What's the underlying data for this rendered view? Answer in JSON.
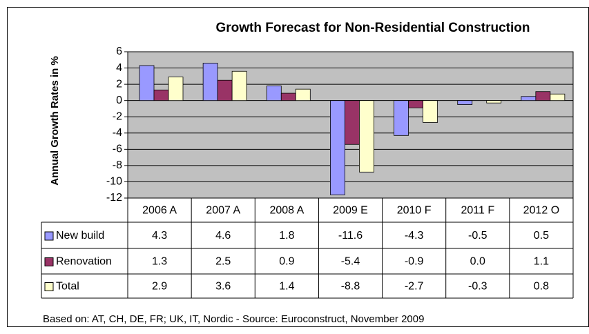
{
  "chart_data": {
    "type": "bar",
    "title": "Growth Forecast for Non-Residential Construction",
    "y_label": "Annual Growth Rates in %",
    "note": "Based on: AT, CH, DE, FR; UK, IT, Nordic - Source: Euroconstruct, November 2009",
    "categories": [
      "2006 A",
      "2007 A",
      "2008 A",
      "2009 E",
      "2010 F",
      "2011 F",
      "2012 O"
    ],
    "series": [
      {
        "name": "New build",
        "color": "#9999ff",
        "values": [
          4.3,
          4.6,
          1.8,
          -11.6,
          -4.3,
          -0.5,
          0.5
        ],
        "value_labels": [
          "4.3",
          "4.6",
          "1.8",
          "-11.6",
          "-4.3",
          "-0.5",
          "0.5"
        ]
      },
      {
        "name": "Renovation",
        "color": "#993366",
        "values": [
          1.3,
          2.5,
          0.9,
          -5.4,
          -0.9,
          0,
          1.1
        ],
        "value_labels": [
          "1.3",
          "2.5",
          "0.9",
          "-5.4",
          "-0.9",
          "0.0",
          "1.1"
        ]
      },
      {
        "name": "Total",
        "color": "#ffffcc",
        "values": [
          2.9,
          3.6,
          1.4,
          -8.8,
          -2.7,
          -0.3,
          0.8
        ],
        "value_labels": [
          "2.9",
          "3.6",
          "1.4",
          "-8.8",
          "-2.7",
          "-0.3",
          "0.8"
        ]
      }
    ],
    "ylim": [
      -12,
      6
    ],
    "yticks": [
      6,
      4,
      2,
      0,
      -2,
      -4,
      -6,
      -8,
      -10,
      -12
    ],
    "grid": true,
    "plot_background": "#c0c0c0"
  }
}
